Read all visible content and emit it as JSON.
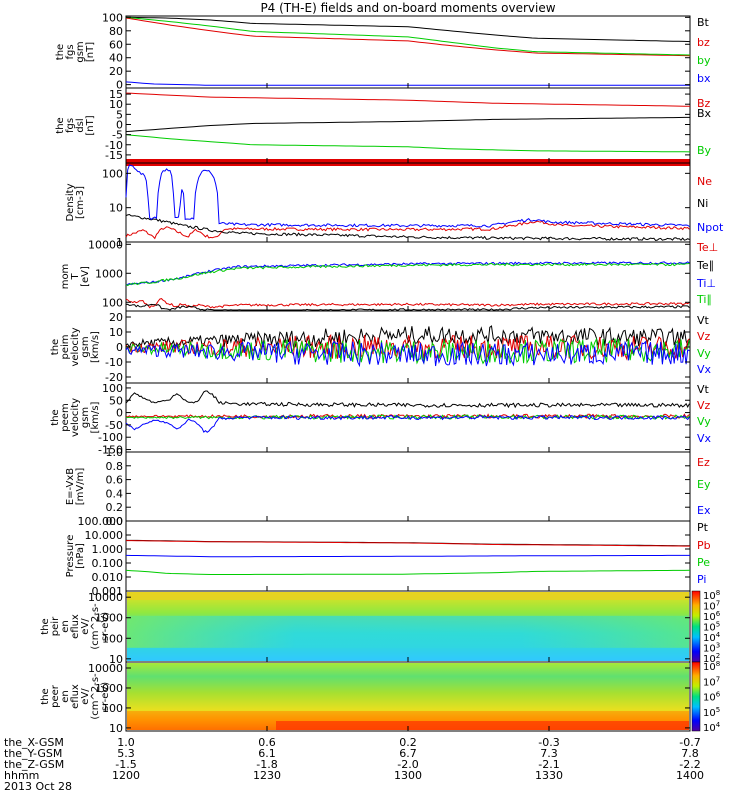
{
  "title": "P4 (TH-E) fields and on-board moments overview",
  "footer_date": "2013 Oct 28",
  "time_axis": {
    "labels": [
      "1200",
      "1230",
      "1300",
      "1330",
      "1400"
    ],
    "rows": [
      {
        "name": "the_X-GSM",
        "values": [
          "1.0",
          "0.6",
          "0.2",
          "-0.3",
          "-0.7"
        ]
      },
      {
        "name": "the_Y-GSM",
        "values": [
          "5.3",
          "6.1",
          "6.7",
          "7.3",
          "7.8"
        ]
      },
      {
        "name": "the_Z-GSM",
        "values": [
          "-1.5",
          "-1.8",
          "-2.0",
          "-2.1",
          "-2.2"
        ]
      },
      {
        "name": "hhmm",
        "values": [
          "1200",
          "1230",
          "1300",
          "1330",
          "1400"
        ]
      }
    ]
  },
  "colors": {
    "black": "#000000",
    "red": "#e00000",
    "green": "#00cc00",
    "blue": "#0000ff"
  },
  "chart_data": [
    {
      "type": "line",
      "panel": "fgs_gsm",
      "ylabel": [
        "the",
        "fgs",
        "gsm",
        "[nT]"
      ],
      "yticks": [
        "100",
        "80",
        "60",
        "40",
        "20",
        "0"
      ],
      "ylim": [
        -5,
        102
      ],
      "series": [
        {
          "name": "Bt",
          "color": "#000000",
          "x": [
            1200,
            1215,
            1230,
            1245,
            1300,
            1315,
            1330,
            1345,
            1400
          ],
          "y": [
            100,
            99,
            96,
            91,
            86,
            80,
            74,
            69,
            64
          ]
        },
        {
          "name": "bz",
          "color": "#e00000",
          "x": [
            1200,
            1215,
            1230,
            1245,
            1300,
            1315,
            1330,
            1345,
            1400
          ],
          "y": [
            99,
            89,
            80,
            72,
            65,
            58,
            52,
            47,
            43
          ]
        },
        {
          "name": "by",
          "color": "#00cc00",
          "x": [
            1200,
            1215,
            1230,
            1245,
            1300,
            1315,
            1330,
            1345,
            1400
          ],
          "y": [
            100,
            94,
            87,
            79,
            71,
            63,
            55,
            49,
            44
          ]
        },
        {
          "name": "bx",
          "color": "#0000ff",
          "x": [
            1200,
            1210,
            1220,
            1230,
            1240,
            1300,
            1400
          ],
          "y": [
            4,
            1,
            0,
            -1,
            -1,
            -1,
            -1
          ]
        }
      ]
    },
    {
      "type": "line",
      "panel": "fgs_dsl",
      "ylabel": [
        "the",
        "fgs",
        "dsl",
        "[nT]"
      ],
      "yticks": [
        "15",
        "10",
        "5",
        "0",
        "-5",
        "-10",
        "-15"
      ],
      "ylim": [
        -19,
        18
      ],
      "series": [
        {
          "name": "Bz",
          "color": "#e00000",
          "x": [
            1200,
            1230,
            1300,
            1330,
            1400
          ],
          "y": [
            15.5,
            13.5,
            12,
            10.5,
            9
          ]
        },
        {
          "name": "Bx",
          "color": "#000000",
          "x": [
            1200,
            1215,
            1230,
            1245,
            1300,
            1330,
            1400
          ],
          "y": [
            -3.5,
            -2,
            -0.5,
            0.5,
            1.5,
            2.5,
            3.5
          ]
        },
        {
          "name": "By",
          "color": "#00cc00",
          "x": [
            1200,
            1215,
            1230,
            1245,
            1300,
            1315,
            1330,
            1345,
            1400
          ],
          "y": [
            -5,
            -7,
            -8.5,
            -10,
            -11,
            -12,
            -12.5,
            -13,
            -13.5
          ]
        }
      ]
    },
    {
      "type": "line",
      "panel": "density",
      "ylabel": [
        "Density",
        "[cm-3]"
      ],
      "yticks": [
        "100",
        "10",
        "1"
      ],
      "scale": "log",
      "ylim": [
        1,
        200
      ],
      "series": [
        {
          "name": "Ne",
          "color": "#e00000",
          "x": [
            1200,
            1203,
            1206,
            1210,
            1213,
            1215,
            1218,
            1222,
            1225,
            1228,
            1232,
            1235,
            1240,
            1300,
            1330,
            1340,
            1345,
            1350,
            1355,
            1400
          ],
          "y": [
            1.5,
            1.8,
            2.2,
            1.3,
            2.5,
            2.6,
            2.0,
            1.4,
            2.3,
            1.5,
            1.3,
            2.4,
            2.4,
            2.3,
            2.4,
            3.3,
            4.0,
            3.5,
            3.0,
            2.5
          ]
        },
        {
          "name": "Ni",
          "color": "#000000",
          "x": [
            1200,
            1210,
            1220,
            1230,
            1240,
            1300,
            1330,
            1400
          ],
          "y": [
            6,
            4.5,
            3,
            2.2,
            1.8,
            1.4,
            1.3,
            1.2
          ]
        },
        {
          "name": "Npot",
          "color": "#0000ff",
          "x": [
            1200,
            1201,
            1203,
            1205,
            1207,
            1208,
            1211,
            1213,
            1215,
            1216,
            1217,
            1219,
            1220,
            1221,
            1224,
            1227,
            1230,
            1231,
            1233,
            1240,
            1300,
            1330,
            1340,
            1345,
            1350,
            1400
          ],
          "y": [
            20,
            180,
            150,
            100,
            80,
            5,
            5,
            120,
            130,
            100,
            5,
            5,
            40,
            5,
            5,
            120,
            110,
            80,
            3.5,
            3.2,
            3,
            3,
            4.2,
            4.5,
            3.8,
            3
          ]
        }
      ]
    },
    {
      "type": "line",
      "panel": "mom_temp",
      "ylabel": [
        "mom",
        "T",
        "[eV]"
      ],
      "yticks": [
        "10000",
        "1000",
        "100"
      ],
      "scale": "log",
      "ylim": [
        50,
        12000
      ],
      "series": [
        {
          "name": "Te⊥",
          "color": "#e00000",
          "x": [
            1200,
            1203,
            1206,
            1208,
            1210,
            1212,
            1215,
            1218,
            1220,
            1222,
            1226,
            1229,
            1232,
            1240,
            1300,
            1330,
            1345,
            1400
          ],
          "y": [
            120,
            100,
            110,
            70,
            75,
            130,
            90,
            70,
            90,
            70,
            80,
            70,
            70,
            80,
            85,
            80,
            85,
            90
          ]
        },
        {
          "name": "Te∥",
          "color": "#000000",
          "x": [
            1200,
            1205,
            1210,
            1213,
            1216,
            1220,
            1224,
            1228,
            1232,
            1300,
            1330,
            1345,
            1400
          ],
          "y": [
            90,
            70,
            90,
            60,
            55,
            70,
            65,
            55,
            50,
            55,
            55,
            65,
            70
          ]
        },
        {
          "name": "Ti⊥",
          "color": "#0000ff",
          "x": [
            1200,
            1210,
            1220,
            1230,
            1240,
            1300,
            1330,
            1400
          ],
          "y": [
            400,
            500,
            700,
            1200,
            1700,
            2100,
            2200,
            2300
          ]
        },
        {
          "name": "Ti∥",
          "color": "#00cc00",
          "x": [
            1200,
            1210,
            1220,
            1230,
            1240,
            1300,
            1330,
            1400
          ],
          "y": [
            400,
            500,
            700,
            1100,
            1500,
            1900,
            2000,
            2000
          ]
        }
      ]
    },
    {
      "type": "line",
      "panel": "peim_velocity",
      "ylabel": [
        "the",
        "peim",
        "velocity",
        "gsm",
        "[km/s]"
      ],
      "yticks": [
        "20",
        "10",
        "0",
        "-10",
        "-20"
      ],
      "ylim": [
        -24,
        24
      ],
      "series": [
        {
          "name": "Vt",
          "color": "#000000",
          "x": [
            1200,
            1230,
            1300,
            1330,
            1400
          ],
          "y": [
            2,
            4,
            8,
            8,
            6
          ]
        },
        {
          "name": "Vz",
          "color": "#e00000",
          "x": [
            1200,
            1230,
            1300,
            1330,
            1400
          ],
          "y": [
            0,
            0,
            0,
            0,
            0
          ]
        },
        {
          "name": "Vy",
          "color": "#00cc00",
          "x": [
            1200,
            1230,
            1300,
            1330,
            1400
          ],
          "y": [
            -1,
            -2,
            -3,
            -3,
            -2
          ]
        },
        {
          "name": "Vx",
          "color": "#0000ff",
          "x": [
            1200,
            1230,
            1300,
            1330,
            1400
          ],
          "y": [
            -2,
            -3,
            -5,
            -5,
            -4
          ]
        }
      ]
    },
    {
      "type": "line",
      "panel": "peem_velocity",
      "ylabel": [
        "the",
        "peem",
        "velocity",
        "gsm",
        "[km/s]"
      ],
      "yticks": [
        "100",
        "50",
        "0",
        "-50",
        "-100",
        "-150"
      ],
      "ylim": [
        -160,
        120
      ],
      "series": [
        {
          "name": "Vt",
          "color": "#000000",
          "x": [
            1200,
            1203,
            1206,
            1210,
            1215,
            1218,
            1222,
            1225,
            1228,
            1231,
            1233,
            1240,
            1300,
            1330,
            1400
          ],
          "y": [
            40,
            80,
            60,
            40,
            50,
            80,
            40,
            40,
            90,
            70,
            40,
            35,
            30,
            30,
            30
          ]
        },
        {
          "name": "Vz",
          "color": "#e00000",
          "x": [
            1200,
            1230,
            1300,
            1330,
            1400
          ],
          "y": [
            -15,
            -15,
            -15,
            -15,
            -15
          ]
        },
        {
          "name": "Vy",
          "color": "#00cc00",
          "x": [
            1200,
            1230,
            1300,
            1330,
            1400
          ],
          "y": [
            -20,
            -20,
            -18,
            -18,
            -18
          ]
        },
        {
          "name": "Vx",
          "color": "#0000ff",
          "x": [
            1200,
            1203,
            1206,
            1210,
            1215,
            1218,
            1222,
            1225,
            1228,
            1231,
            1233,
            1240,
            1300,
            1400
          ],
          "y": [
            -40,
            -70,
            -50,
            -30,
            -40,
            -70,
            -30,
            -40,
            -80,
            -60,
            -25,
            -20,
            -20,
            -20
          ]
        }
      ]
    },
    {
      "type": "line",
      "panel": "efield",
      "ylabel": [
        "E=-VxB",
        "[mV/m]"
      ],
      "yticks": [
        "1.0",
        "0.8",
        "0.6",
        "0.4",
        "0.2",
        "0.0"
      ],
      "ylim": [
        0,
        1
      ],
      "series": [
        {
          "name": "Ez",
          "color": "#e00000",
          "x": [],
          "y": []
        },
        {
          "name": "Ey",
          "color": "#00cc00",
          "x": [],
          "y": []
        },
        {
          "name": "Ex",
          "color": "#0000ff",
          "x": [],
          "y": []
        }
      ]
    },
    {
      "type": "line",
      "panel": "pressure",
      "ylabel": [
        "Pressure",
        "[nPa]"
      ],
      "yticks": [
        "100.000",
        "10.000",
        "1.000",
        "0.100",
        "0.010",
        "0.001"
      ],
      "scale": "log",
      "ylim": [
        0.001,
        100
      ],
      "series": [
        {
          "name": "Pt",
          "color": "#000000",
          "x": [
            1200,
            1230,
            1300,
            1330,
            1400
          ],
          "y": [
            4.2,
            3.4,
            2.8,
            2.2,
            1.7
          ]
        },
        {
          "name": "Pb",
          "color": "#e00000",
          "x": [
            1200,
            1230,
            1300,
            1330,
            1400
          ],
          "y": [
            4.0,
            3.3,
            2.7,
            2.1,
            1.6
          ]
        },
        {
          "name": "Pe",
          "color": "#00cc00",
          "x": [
            1200,
            1215,
            1230,
            1300,
            1330,
            1345,
            1400
          ],
          "y": [
            0.03,
            0.018,
            0.015,
            0.016,
            0.02,
            0.025,
            0.03
          ]
        },
        {
          "name": "Pi",
          "color": "#0000ff",
          "x": [
            1200,
            1230,
            1300,
            1330,
            1400
          ],
          "y": [
            0.35,
            0.28,
            0.3,
            0.32,
            0.35
          ]
        }
      ]
    },
    {
      "type": "heatmap",
      "panel": "peir_en_eflux",
      "ylabel": [
        "the",
        "peir",
        "en",
        "eflux",
        "eV/",
        "(cm^2-s-",
        "sr-eV)"
      ],
      "yticks": [
        "10000",
        "1000",
        "100",
        "10"
      ],
      "scale": "log",
      "ylim": [
        7,
        20000
      ],
      "colorbar": {
        "labels": [
          "10^8",
          "10^7",
          "10^6",
          "10^5",
          "10^4",
          "10^3",
          "10^2"
        ],
        "range": [
          2,
          8
        ]
      }
    },
    {
      "type": "heatmap",
      "panel": "peer_en_eflux",
      "ylabel": [
        "the",
        "peer",
        "en",
        "eflux",
        "eV/",
        "(cm^2-s-",
        "sr-eV)"
      ],
      "yticks": [
        "10000",
        "1000",
        "100",
        "10"
      ],
      "scale": "log",
      "ylim": [
        7,
        20000
      ],
      "colorbar": {
        "labels": [
          "10^8",
          "10^7",
          "10^6",
          "10^5",
          "10^4"
        ],
        "range": [
          4,
          8
        ]
      }
    }
  ]
}
